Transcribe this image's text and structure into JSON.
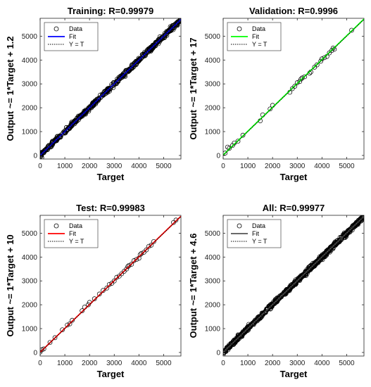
{
  "chart_data": [
    {
      "type": "scatter",
      "title": "Training: R=0.99979",
      "xlabel": "Target",
      "ylabel": "Output ~= 1*Target + 1.2",
      "xlim": [
        0,
        5700
      ],
      "ylim": [
        -150,
        5750
      ],
      "xticks": [
        0,
        1000,
        2000,
        3000,
        4000,
        5000
      ],
      "yticks": [
        0,
        1000,
        2000,
        3000,
        4000,
        5000
      ],
      "fit": {
        "slope": 1,
        "intercept": 1.2,
        "color": "#0000ff"
      },
      "legend": {
        "position": "top-left",
        "entries": [
          "Data",
          "Fit",
          "Y = T"
        ]
      },
      "points_summary": {
        "count_approx": 500,
        "x_range": [
          0,
          5700
        ],
        "marker": "open-circle"
      }
    },
    {
      "type": "scatter",
      "title": "Validation: R=0.9996",
      "xlabel": "Target",
      "ylabel": "Output ~= 1*Target + 17",
      "xlim": [
        0,
        5700
      ],
      "ylim": [
        -150,
        5750
      ],
      "xticks": [
        0,
        1000,
        2000,
        3000,
        4000,
        5000
      ],
      "yticks": [
        0,
        1000,
        2000,
        3000,
        4000,
        5000
      ],
      "fit": {
        "slope": 1,
        "intercept": 17,
        "color": "#00ff00"
      },
      "legend": {
        "position": "top-left",
        "entries": [
          "Data",
          "Fit",
          "Y = T"
        ]
      },
      "points": [
        [
          80,
          100
        ],
        [
          180,
          350
        ],
        [
          250,
          300
        ],
        [
          380,
          420
        ],
        [
          450,
          520
        ],
        [
          600,
          600
        ],
        [
          800,
          850
        ],
        [
          1500,
          1450
        ],
        [
          1600,
          1700
        ],
        [
          1900,
          1950
        ],
        [
          2000,
          2100
        ],
        [
          2700,
          2650
        ],
        [
          2800,
          2800
        ],
        [
          2900,
          2900
        ],
        [
          3000,
          3050
        ],
        [
          3100,
          3100
        ],
        [
          3150,
          3200
        ],
        [
          3200,
          3250
        ],
        [
          3300,
          3300
        ],
        [
          3500,
          3450
        ],
        [
          3550,
          3500
        ],
        [
          3700,
          3700
        ],
        [
          3800,
          3800
        ],
        [
          3950,
          3950
        ],
        [
          4000,
          4050
        ],
        [
          4100,
          4100
        ],
        [
          4200,
          4150
        ],
        [
          4300,
          4300
        ],
        [
          4400,
          4400
        ],
        [
          4450,
          4500
        ],
        [
          4500,
          4450
        ],
        [
          5200,
          5250
        ]
      ]
    },
    {
      "type": "scatter",
      "title": "Test: R=0.99983",
      "xlabel": "Target",
      "ylabel": "Output ~= 1*Target + 10",
      "xlim": [
        0,
        5700
      ],
      "ylim": [
        -150,
        5750
      ],
      "xticks": [
        0,
        1000,
        2000,
        3000,
        4000,
        5000
      ],
      "yticks": [
        0,
        1000,
        2000,
        3000,
        4000,
        5000
      ],
      "fit": {
        "slope": 1,
        "intercept": 10,
        "color": "#ff0000"
      },
      "legend": {
        "position": "top-left",
        "entries": [
          "Data",
          "Fit",
          "Y = T"
        ]
      },
      "points": [
        [
          0,
          20
        ],
        [
          80,
          120
        ],
        [
          150,
          150
        ],
        [
          400,
          420
        ],
        [
          600,
          620
        ],
        [
          900,
          950
        ],
        [
          1100,
          1150
        ],
        [
          1200,
          1200
        ],
        [
          1300,
          1350
        ],
        [
          1700,
          1750
        ],
        [
          1800,
          1900
        ],
        [
          1950,
          2000
        ],
        [
          2000,
          2100
        ],
        [
          2200,
          2250
        ],
        [
          2400,
          2450
        ],
        [
          2550,
          2600
        ],
        [
          2700,
          2700
        ],
        [
          2800,
          2850
        ],
        [
          2900,
          2900
        ],
        [
          3000,
          3000
        ],
        [
          3100,
          3150
        ],
        [
          3200,
          3200
        ],
        [
          3300,
          3300
        ],
        [
          3400,
          3400
        ],
        [
          3500,
          3500
        ],
        [
          3550,
          3600
        ],
        [
          3600,
          3650
        ],
        [
          3700,
          3700
        ],
        [
          3800,
          3850
        ],
        [
          3900,
          3900
        ],
        [
          4000,
          3950
        ],
        [
          4050,
          4100
        ],
        [
          4100,
          4150
        ],
        [
          4200,
          4200
        ],
        [
          4300,
          4300
        ],
        [
          4400,
          4450
        ],
        [
          4500,
          4500
        ],
        [
          4600,
          4650
        ],
        [
          5400,
          5450
        ],
        [
          5500,
          5550
        ]
      ]
    },
    {
      "type": "scatter",
      "title": "All: R=0.99977",
      "xlabel": "Target",
      "ylabel": "Output ~= 1*Target + 4.6",
      "xlim": [
        0,
        5700
      ],
      "ylim": [
        -150,
        5750
      ],
      "xticks": [
        0,
        1000,
        2000,
        3000,
        4000,
        5000
      ],
      "yticks": [
        0,
        1000,
        2000,
        3000,
        4000,
        5000
      ],
      "fit": {
        "slope": 1,
        "intercept": 4.6,
        "color": "#555555"
      },
      "legend": {
        "position": "top-left",
        "entries": [
          "Data",
          "Fit",
          "Y = T"
        ]
      },
      "points_summary": {
        "count_approx": 700,
        "x_range": [
          0,
          5700
        ],
        "marker": "open-circle"
      }
    }
  ]
}
